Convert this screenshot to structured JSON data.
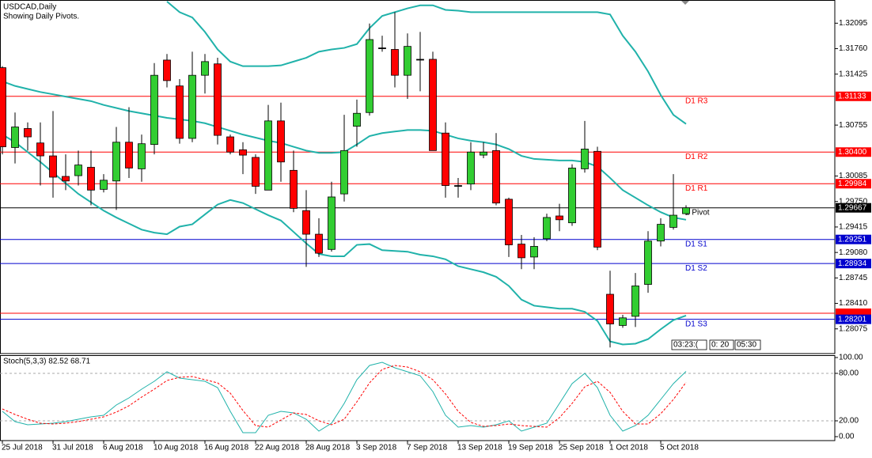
{
  "chart_data": [
    {
      "type": "candlestick",
      "title": "USDCAD,Daily",
      "subtitle": "Showing Daily Pivots.",
      "categories": [
        "25 Jul 2018",
        null,
        null,
        null,
        "31 Jul 2018",
        null,
        null,
        null,
        "6 Aug 2018",
        null,
        null,
        null,
        "10 Aug 2018",
        null,
        null,
        null,
        "16 Aug 2018",
        null,
        null,
        null,
        "22 Aug 2018",
        null,
        null,
        null,
        "28 Aug 2018",
        null,
        null,
        null,
        "3 Sep 2018",
        null,
        null,
        null,
        "7 Sep 2018",
        null,
        null,
        null,
        "13 Sep 2018",
        null,
        null,
        null,
        "19 Sep 2018",
        null,
        null,
        null,
        "25 Sep 2018",
        null,
        null,
        null,
        "1 Oct 2018",
        null,
        null,
        null,
        "5 Oct 2018",
        null,
        null
      ],
      "open": [
        1.3151,
        1.3046,
        1.3071,
        1.3052,
        1.3035,
        1.3008,
        1.3009,
        1.302,
        1.2991,
        1.3002,
        1.3053,
        1.3018,
        1.305,
        1.3161,
        1.3127,
        1.3058,
        1.3141,
        1.3156,
        1.306,
        1.3043,
        1.3033,
        1.299,
        1.3081,
        1.3016,
        1.2963,
        1.2932,
        1.2912,
        1.2985,
        1.3074,
        1.3092,
        1.3177,
        1.3175,
        1.3141,
        1.3162,
        1.3162,
        1.3065,
        1.2996,
        1.2998,
        1.3036,
        1.3042,
        1.2978,
        1.2919,
        1.2902,
        1.2926,
        1.2956,
        1.2947,
        1.3018,
        1.3041,
        1.2853,
        1.2812,
        1.2824,
        1.2866,
        1.2923,
        1.2941,
        1.2959
      ],
      "high": [
        1.3153,
        1.3092,
        1.3079,
        1.3079,
        1.3094,
        1.3037,
        1.3042,
        1.3042,
        1.3011,
        1.3073,
        1.3099,
        1.3063,
        1.3157,
        1.3169,
        1.3136,
        1.3172,
        1.3169,
        1.3164,
        1.3063,
        1.3053,
        1.3037,
        1.3102,
        1.3105,
        1.3042,
        1.299,
        1.2953,
        1.3001,
        1.3089,
        1.3109,
        1.3209,
        1.3193,
        1.3224,
        1.3196,
        1.3198,
        1.3172,
        1.3079,
        1.3006,
        1.3053,
        1.3053,
        1.3065,
        1.298,
        1.2931,
        1.2928,
        1.2959,
        1.2972,
        1.3024,
        1.3081,
        1.3047,
        1.2884,
        1.2826,
        1.2881,
        1.2936,
        1.2953,
        1.3011,
        1.297
      ],
      "low": [
        1.3037,
        1.3025,
        1.3042,
        1.2996,
        1.298,
        1.299,
        1.2996,
        1.297,
        1.2987,
        1.2964,
        1.3006,
        1.3001,
        1.3037,
        1.3125,
        1.3051,
        1.3053,
        1.3117,
        1.305,
        1.3037,
        1.3011,
        1.2985,
        1.299,
        1.3001,
        1.2961,
        1.2889,
        1.2902,
        1.2909,
        1.2975,
        1.3047,
        1.3088,
        1.3172,
        1.3125,
        1.311,
        1.312,
        1.3042,
        1.298,
        1.298,
        1.299,
        1.3032,
        1.297,
        1.2902,
        1.2886,
        1.2886,
        1.2923,
        1.2936,
        1.2943,
        1.3013,
        1.2911,
        1.2783,
        1.2809,
        1.281,
        1.2855,
        1.2916,
        1.2938,
        1.2957
      ],
      "close": [
        1.3047,
        1.3073,
        1.306,
        1.3035,
        1.3007,
        1.3002,
        1.3023,
        1.299,
        1.3003,
        1.3053,
        1.3019,
        1.3051,
        1.3141,
        1.3134,
        1.3058,
        1.3141,
        1.3159,
        1.3062,
        1.304,
        1.3036,
        1.2995,
        1.3081,
        1.3027,
        1.2966,
        1.2932,
        1.2907,
        1.2981,
        1.3042,
        1.3091,
        1.3188,
        1.3177,
        1.3141,
        1.3179,
        1.3162,
        1.3042,
        1.2996,
        1.2996,
        1.304,
        1.304,
        1.2973,
        1.2918,
        1.2901,
        1.2916,
        1.2954,
        1.2951,
        1.3019,
        1.3044,
        1.2915,
        1.2814,
        1.2822,
        1.2864,
        1.2923,
        1.2945,
        1.2957,
        1.29667
      ],
      "up_color": "#32cd32",
      "down_color": "#ff0000",
      "bands": {
        "color": "#20b2aa",
        "upper": [
          null,
          null,
          null,
          null,
          null,
          null,
          null,
          null,
          null,
          null,
          null,
          null,
          null,
          1.3238,
          1.3224,
          1.3217,
          1.3198,
          1.3175,
          1.3159,
          1.3153,
          1.3153,
          1.3153,
          1.3154,
          1.3159,
          1.3164,
          1.3172,
          1.3175,
          1.3177,
          1.3182,
          1.3203,
          1.3219,
          1.3224,
          1.3229,
          1.3233,
          1.3233,
          1.3227,
          1.3226,
          1.3224,
          1.3224,
          1.3224,
          1.3224,
          1.3224,
          1.3224,
          1.3224,
          1.3224,
          1.3224,
          1.3224,
          1.3224,
          1.3221,
          1.3193,
          1.3172,
          1.3146,
          1.3115,
          1.3089,
          1.3077
        ],
        "middle": [
          1.3133,
          1.3127,
          1.3123,
          1.3119,
          1.3116,
          1.3113,
          1.311,
          1.3107,
          1.3102,
          1.3098,
          1.3094,
          1.3091,
          1.3088,
          1.3085,
          1.3083,
          1.3081,
          1.3078,
          1.3073,
          1.3068,
          1.3063,
          1.3059,
          1.3055,
          1.3052,
          1.3047,
          1.3042,
          1.3039,
          1.3039,
          1.304,
          1.305,
          1.3061,
          1.3065,
          1.3067,
          1.3069,
          1.3069,
          1.3068,
          1.3063,
          1.3058,
          1.3055,
          1.3053,
          1.305,
          1.3044,
          1.3035,
          1.3031,
          1.303,
          1.3029,
          1.3029,
          1.3027,
          1.3021,
          1.3006,
          1.299,
          1.298,
          1.297,
          1.2961,
          1.2954,
          1.2951
        ],
        "lower": [
          1.3063,
          1.3053,
          1.304,
          1.3027,
          1.3013,
          1.2999,
          1.2985,
          1.2974,
          1.2963,
          1.2954,
          1.2946,
          1.2938,
          1.2934,
          1.2932,
          1.2942,
          1.2945,
          1.2958,
          1.2971,
          1.2977,
          1.2973,
          1.2965,
          1.2957,
          1.295,
          1.2935,
          1.292,
          1.2906,
          1.2903,
          1.2903,
          1.2918,
          1.2919,
          1.2911,
          1.291,
          1.2909,
          1.2905,
          1.2903,
          1.2899,
          1.289,
          1.2886,
          1.2882,
          1.2876,
          1.2864,
          1.2846,
          1.2838,
          1.2836,
          1.2834,
          1.2834,
          1.283,
          1.2818,
          1.2791,
          1.2787,
          1.2788,
          1.2794,
          1.2807,
          1.2819,
          1.2825
        ]
      },
      "lines": [
        {
          "name": "D1 R3",
          "value": 1.31133,
          "label": "1.31133",
          "color": "#ff0000"
        },
        {
          "name": "D1 R2",
          "value": 1.304,
          "label": "1.30400",
          "color": "#ff0000"
        },
        {
          "name": "D1 R1",
          "value": 1.29984,
          "label": "1.29984",
          "color": "#ff0000"
        },
        {
          "name": "1 Pivot",
          "value": 1.29667,
          "label": "1.29667",
          "color": "#000000"
        },
        {
          "name": "D1 S1",
          "value": 1.29251,
          "label": "1.29251",
          "color": "#0000cd"
        },
        {
          "name": "D1 S2",
          "value": 1.28934,
          "label": "1.28934",
          "color": "#0000cd"
        },
        {
          "value": 1.2828,
          "color": "#ff0000"
        },
        {
          "name": "D1 S3",
          "value": 1.28201,
          "label": "1.28201",
          "color": "#0000cd"
        }
      ],
      "timer": [
        "03:23:(",
        "0: 20",
        "05:30"
      ],
      "ylim": [
        1.2775,
        1.324
      ],
      "yticks": [
        1.32095,
        {
          "value": 1.3176,
          "label": "1.31760"
        },
        1.31425,
        1.30755,
        1.30085,
        {
          "value": 1.2975,
          "label": "1.29750"
        },
        1.29415,
        {
          "value": 1.2908,
          "label": "1.29080"
        },
        1.28745,
        {
          "value": 1.2841,
          "label": "1.28410"
        },
        1.28075
      ]
    },
    {
      "type": "line",
      "title": "Stoch(5,3,3) 82.52 68.71",
      "series": [
        {
          "color": "#20b2aa",
          "values": [
            32,
            19,
            15,
            16,
            17,
            19,
            22,
            25,
            27,
            40,
            49,
            60,
            70,
            82,
            74,
            72,
            70,
            62,
            32,
            5,
            5,
            27,
            32,
            30,
            22,
            7,
            17,
            42,
            72,
            90,
            94,
            87,
            82,
            77,
            57,
            27,
            12,
            14,
            12,
            15,
            20,
            7,
            12,
            17,
            42,
            67,
            80,
            62,
            27,
            7,
            14,
            27,
            47,
            67,
            82.52
          ]
        },
        {
          "color": "#ff0000",
          "dashed": true,
          "values": [
            35,
            28,
            22,
            17,
            16,
            17,
            19,
            22,
            25,
            31,
            39,
            50,
            60,
            71,
            75,
            76,
            72,
            68,
            55,
            33,
            14,
            12,
            21,
            30,
            28,
            20,
            15,
            22,
            44,
            68,
            85,
            90,
            88,
            82,
            72,
            54,
            32,
            18,
            13,
            14,
            16,
            14,
            13,
            12,
            24,
            42,
            63,
            70,
            56,
            32,
            16,
            16,
            29,
            47,
            68.71
          ]
        }
      ],
      "ylim": [
        0,
        100
      ],
      "yticks": [
        {
          "value": 100,
          "label": "100.00"
        },
        {
          "value": 80,
          "label": "80.00"
        },
        {
          "value": 20,
          "label": "20.00"
        },
        {
          "value": 0,
          "label": "0.00"
        }
      ]
    }
  ]
}
